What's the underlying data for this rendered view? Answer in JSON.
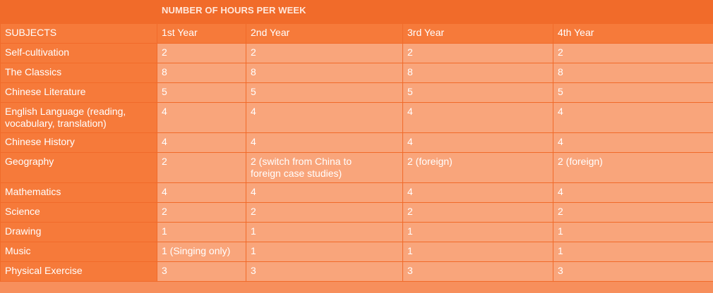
{
  "table": {
    "title": "NUMBER OF HOURS PER WEEK",
    "headers": [
      "SUBJECTS",
      "1st Year",
      "2nd Year",
      "3rd Year",
      "4th Year"
    ],
    "rows": [
      [
        "Self-cultivation",
        "2",
        "2",
        "2",
        "2"
      ],
      [
        "The Classics",
        "8",
        "8",
        "8",
        "8"
      ],
      [
        "Chinese Literature",
        "5",
        "5",
        "5",
        "5"
      ],
      [
        "English Language (reading,\nvocabulary, translation)",
        "4",
        "4",
        "4",
        "4"
      ],
      [
        "Chinese History",
        "4",
        "4",
        "4",
        "4"
      ],
      [
        "Geography",
        "2",
        "2 (switch from China to\nforeign case studies)",
        "2 (foreign)",
        "2 (foreign)"
      ],
      [
        "Mathematics",
        "4",
        "4",
        "4",
        "4"
      ],
      [
        "Science",
        "2",
        "2",
        "2",
        "2"
      ],
      [
        "Drawing",
        "1",
        "1",
        "1",
        "1"
      ],
      [
        "Music",
        "1 (Singing only)",
        "1",
        "1",
        "1"
      ],
      [
        "Physical Exercise",
        "3",
        "3",
        "3",
        "3"
      ]
    ]
  },
  "colors": {
    "title_row": "#f16b2a",
    "header_and_subject_cells": "#f67a3a",
    "value_cells": "#f9a57b",
    "text": "#ffffff"
  }
}
